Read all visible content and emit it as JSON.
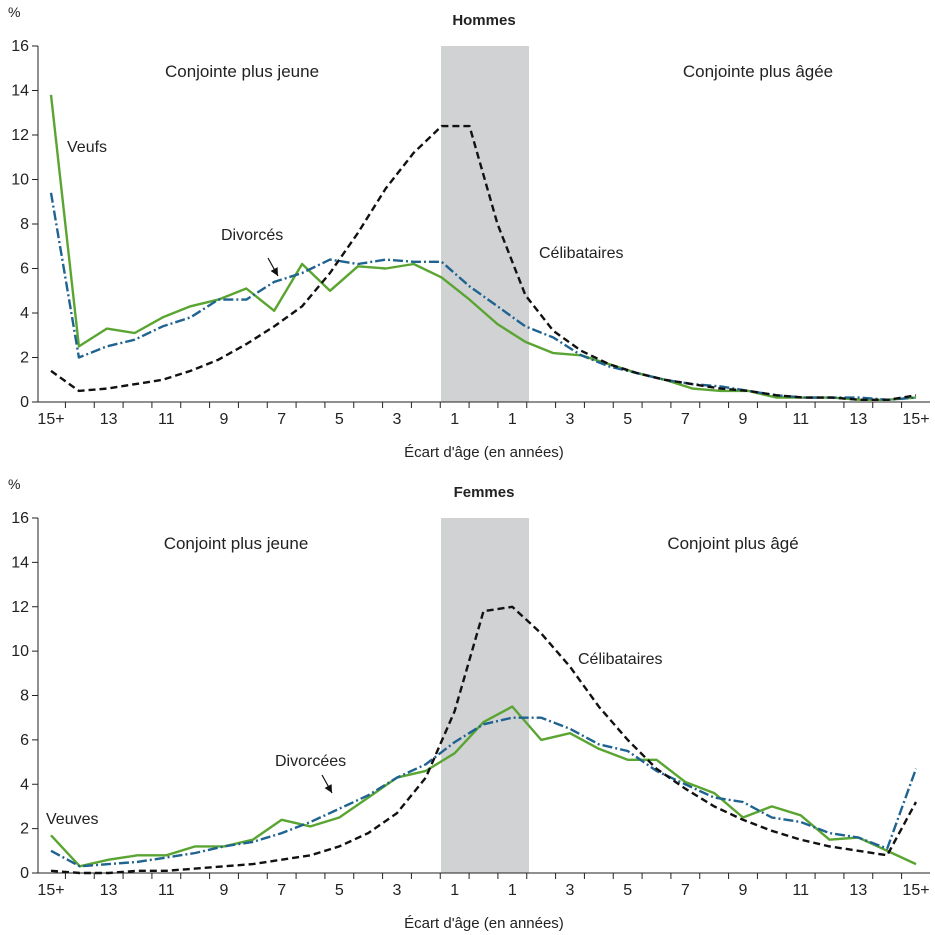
{
  "chart_data": [
    {
      "type": "line",
      "title": "Hommes",
      "yunit": "%",
      "xlabel": "Écart d'âge (en années)",
      "ylim": [
        0,
        16
      ],
      "yticks": [
        0,
        2,
        4,
        6,
        8,
        10,
        12,
        14,
        16
      ],
      "xticks": [
        "15+",
        "13",
        "11",
        "9",
        "7",
        "5",
        "3",
        "1",
        "1",
        "3",
        "5",
        "7",
        "9",
        "11",
        "13",
        "15+"
      ],
      "region_left": "Conjointe plus jeune",
      "region_right": "Conjointe plus âgée",
      "colors": {
        "veufs": "#5aa532",
        "divorces": "#1f6391",
        "celibataires": "#111111",
        "band": "#d1d2d4"
      },
      "series": [
        {
          "name": "Veufs",
          "key": "veufs",
          "style": "solid",
          "values": [
            13.8,
            2.5,
            3.3,
            3.1,
            3.8,
            4.3,
            4.6,
            5.1,
            4.1,
            6.2,
            5.0,
            6.1,
            6.0,
            6.2,
            5.6,
            4.6,
            3.5,
            2.7,
            2.2,
            2.1,
            1.7,
            1.3,
            1.0,
            0.6,
            0.5,
            0.5,
            0.2,
            0.2,
            0.2,
            0.1,
            0.1,
            0.2
          ]
        },
        {
          "name": "Divorcés",
          "key": "divorces",
          "style": "dashdot",
          "values": [
            9.4,
            2.0,
            2.5,
            2.8,
            3.4,
            3.8,
            4.6,
            4.6,
            5.4,
            5.8,
            6.4,
            6.2,
            6.4,
            6.3,
            6.3,
            5.2,
            4.3,
            3.4,
            2.9,
            2.1,
            1.6,
            1.3,
            1.0,
            0.8,
            0.7,
            0.5,
            0.3,
            0.2,
            0.2,
            0.2,
            0.1,
            0.2
          ]
        },
        {
          "name": "Célibataires",
          "key": "celibataires",
          "style": "dashed",
          "values": [
            1.4,
            0.5,
            0.6,
            0.8,
            1.0,
            1.4,
            1.9,
            2.6,
            3.4,
            4.3,
            5.8,
            7.6,
            9.6,
            11.2,
            12.4,
            12.4,
            8.0,
            4.8,
            3.2,
            2.3,
            1.7,
            1.3,
            1.0,
            0.8,
            0.6,
            0.5,
            0.3,
            0.2,
            0.2,
            0.1,
            0.1,
            0.3
          ]
        }
      ],
      "annotations": {
        "veufs": "Veufs",
        "divorces": "Divorcés",
        "celibataires": "Célibataires"
      }
    },
    {
      "type": "line",
      "title": "Femmes",
      "yunit": "%",
      "xlabel": "Écart d'âge (en années)",
      "ylim": [
        0,
        16
      ],
      "yticks": [
        0,
        2,
        4,
        6,
        8,
        10,
        12,
        14,
        16
      ],
      "xticks": [
        "15+",
        "13",
        "11",
        "9",
        "7",
        "5",
        "3",
        "1",
        "1",
        "3",
        "5",
        "7",
        "9",
        "11",
        "13",
        "15+"
      ],
      "region_left": "Conjoint plus jeune",
      "region_right": "Conjoint plus âgé",
      "colors": {
        "veufs": "#5aa532",
        "divorces": "#1f6391",
        "celibataires": "#111111",
        "band": "#d1d2d4"
      },
      "series": [
        {
          "name": "Veuves",
          "key": "veufs",
          "style": "solid",
          "values": [
            1.7,
            0.3,
            0.6,
            0.8,
            0.8,
            1.2,
            1.2,
            1.5,
            2.4,
            2.1,
            2.5,
            3.4,
            4.3,
            4.6,
            5.4,
            6.8,
            7.5,
            6.0,
            6.3,
            5.6,
            5.1,
            5.1,
            4.1,
            3.6,
            2.5,
            3.0,
            2.6,
            1.5,
            1.6,
            1.0,
            0.4
          ]
        },
        {
          "name": "Divorcées",
          "key": "divorces",
          "style": "dashdot",
          "values": [
            1.0,
            0.3,
            0.4,
            0.5,
            0.7,
            0.9,
            1.2,
            1.4,
            1.8,
            2.3,
            2.9,
            3.5,
            4.3,
            4.9,
            5.9,
            6.7,
            7.0,
            7.0,
            6.5,
            5.8,
            5.5,
            4.6,
            4.0,
            3.4,
            3.2,
            2.5,
            2.3,
            1.8,
            1.6,
            1.1,
            4.7
          ]
        },
        {
          "name": "Célibataires",
          "key": "celibataires",
          "style": "dashed",
          "values": [
            0.1,
            0.0,
            0.0,
            0.1,
            0.1,
            0.2,
            0.3,
            0.4,
            0.6,
            0.8,
            1.2,
            1.8,
            2.7,
            4.3,
            7.3,
            11.8,
            12.0,
            10.8,
            9.3,
            7.5,
            6.0,
            4.7,
            3.8,
            3.0,
            2.4,
            1.9,
            1.5,
            1.2,
            1.0,
            0.8,
            3.2
          ]
        }
      ],
      "annotations": {
        "veufs": "Veuves",
        "divorces": "Divorcées",
        "celibataires": "Célibataires"
      }
    }
  ]
}
